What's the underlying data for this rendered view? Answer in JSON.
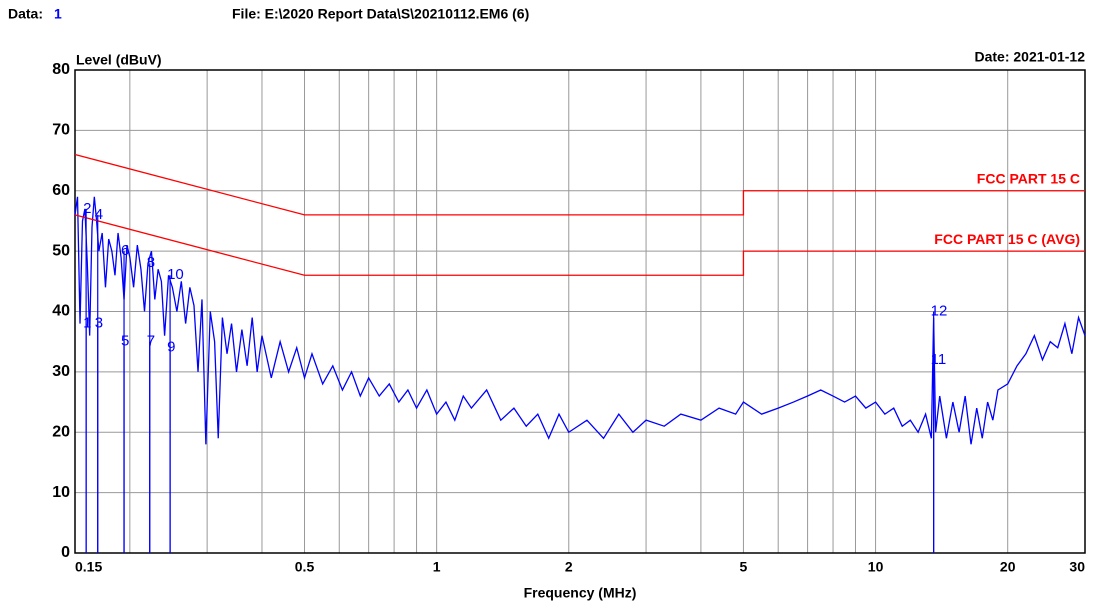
{
  "header": {
    "data_label": "Data:",
    "data_value": "1",
    "file": "File: E:\\2020 Report Data\\S\\20210112.EM6  (6)",
    "date": "Date: 2021-01-12"
  },
  "chart_data": {
    "type": "line",
    "xscale": "log",
    "grid": true,
    "ylabel": "Level (dBuV)",
    "xlabel": "Frequency (MHz)",
    "ylim": [
      0,
      80
    ],
    "yticks": [
      0,
      10,
      20,
      30,
      40,
      50,
      60,
      70,
      80
    ],
    "xlim": [
      0.15,
      30
    ],
    "xticks": [
      0.15,
      0.5,
      1,
      2,
      5,
      10,
      20,
      30
    ],
    "xgrid": [
      0.2,
      0.3,
      0.4,
      0.6,
      0.7,
      0.8,
      0.9,
      3,
      4,
      6,
      7,
      8,
      9
    ],
    "series": [
      {
        "color": "#0000ff",
        "x": [
          0.15,
          0.152,
          0.154,
          0.156,
          0.158,
          0.16,
          0.162,
          0.164,
          0.166,
          0.168,
          0.17,
          0.173,
          0.176,
          0.179,
          0.182,
          0.185,
          0.188,
          0.191,
          0.194,
          0.197,
          0.2,
          0.204,
          0.208,
          0.212,
          0.216,
          0.22,
          0.224,
          0.228,
          0.232,
          0.236,
          0.24,
          0.245,
          0.25,
          0.256,
          0.262,
          0.268,
          0.274,
          0.28,
          0.286,
          0.292,
          0.298,
          0.305,
          0.312,
          0.318,
          0.325,
          0.333,
          0.341,
          0.35,
          0.36,
          0.37,
          0.38,
          0.39,
          0.4,
          0.42,
          0.44,
          0.46,
          0.48,
          0.5,
          0.52,
          0.55,
          0.58,
          0.61,
          0.64,
          0.67,
          0.7,
          0.74,
          0.78,
          0.82,
          0.86,
          0.9,
          0.95,
          1,
          1.05,
          1.1,
          1.15,
          1.2,
          1.3,
          1.4,
          1.5,
          1.6,
          1.7,
          1.8,
          1.9,
          2,
          2.2,
          2.4,
          2.6,
          2.8,
          3,
          3.3,
          3.6,
          4,
          4.4,
          4.8,
          5,
          5.5,
          6,
          6.5,
          7,
          7.5,
          8,
          8.5,
          9,
          9.5,
          10,
          10.5,
          11,
          11.5,
          12,
          12.5,
          13,
          13.4,
          13.56,
          13.7,
          14,
          14.5,
          15,
          15.5,
          16,
          16.5,
          17,
          17.5,
          18,
          18.5,
          19,
          20,
          21,
          22,
          23,
          24,
          25,
          26,
          27,
          28,
          29,
          30
        ],
        "values": [
          56,
          59,
          38,
          55,
          57,
          48,
          36,
          54,
          59,
          55,
          50,
          53,
          44,
          52,
          50,
          46,
          53,
          49,
          42,
          51,
          49,
          44,
          51,
          47,
          40,
          48,
          50,
          42,
          47,
          45,
          36,
          46,
          44,
          40,
          45,
          38,
          44,
          41,
          30,
          42,
          18,
          40,
          35,
          19,
          39,
          33,
          38,
          30,
          37,
          31,
          39,
          30,
          36,
          29,
          35,
          30,
          34,
          29,
          33,
          28,
          31,
          27,
          30,
          26,
          29,
          26,
          28,
          25,
          27,
          24,
          27,
          23,
          25,
          22,
          26,
          24,
          27,
          22,
          24,
          21,
          23,
          19,
          23,
          20,
          22,
          19,
          23,
          20,
          22,
          21,
          23,
          22,
          24,
          23,
          25,
          23,
          24,
          25,
          26,
          27,
          26,
          25,
          26,
          24,
          25,
          23,
          24,
          21,
          22,
          20,
          23,
          19,
          39,
          20,
          26,
          19,
          25,
          20,
          26,
          18,
          24,
          19,
          25,
          22,
          27,
          28,
          31,
          33,
          36,
          32,
          35,
          34,
          38,
          33,
          39,
          36
        ]
      },
      {
        "name": "FCC PART 15 C",
        "color": "#ff0000",
        "x": [
          0.15,
          0.5,
          5,
          5,
          30
        ],
        "values": [
          66,
          56,
          56,
          60,
          60
        ]
      },
      {
        "name": "FCC PART 15 C (AVG)",
        "color": "#ff0000",
        "x": [
          0.15,
          0.5,
          5,
          5,
          30
        ],
        "values": [
          56,
          46,
          46,
          50,
          50
        ]
      }
    ],
    "markers": {
      "color": "#0000ff",
      "labels": [
        "1",
        "2",
        "3",
        "4",
        "5",
        "6",
        "7",
        "8",
        "9",
        "10",
        "11",
        "12"
      ],
      "x": [
        0.159,
        0.159,
        0.169,
        0.169,
        0.194,
        0.194,
        0.222,
        0.222,
        0.247,
        0.247,
        13.56,
        13.56
      ],
      "values": [
        38,
        57,
        38,
        56,
        35,
        50,
        35,
        48,
        34,
        46,
        32,
        40
      ]
    }
  }
}
